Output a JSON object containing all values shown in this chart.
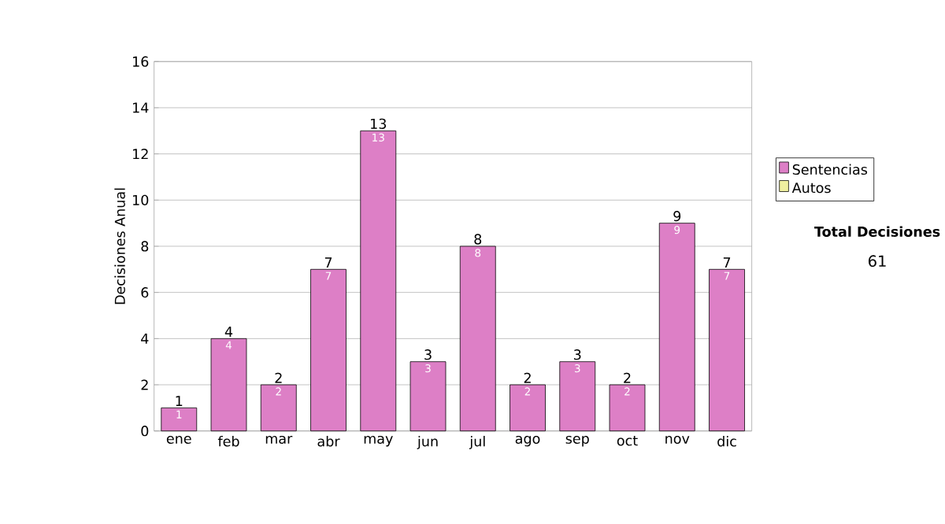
{
  "chart_data": {
    "type": "bar",
    "stacked": true,
    "ylabel": "Decisiones Anual",
    "categories": [
      "ene",
      "feb",
      "mar",
      "abr",
      "may",
      "jun",
      "jul",
      "ago",
      "sep",
      "oct",
      "nov",
      "dic"
    ],
    "series": [
      {
        "name": "Sentencias",
        "color": "#dd7fc6",
        "values": [
          1,
          4,
          2,
          7,
          13,
          3,
          8,
          2,
          3,
          2,
          9,
          7
        ],
        "value_labels": [
          "1",
          "4",
          "2",
          "7",
          "13",
          "3",
          "8",
          "2",
          "3",
          "2",
          "9",
          "7"
        ]
      },
      {
        "name": "Autos",
        "color": "#f0f0a0",
        "values": [
          0,
          0,
          0,
          0,
          0,
          0,
          0,
          0,
          0,
          0,
          0,
          0
        ]
      }
    ],
    "totals": [
      "1",
      "4",
      "2",
      "7",
      "13",
      "3",
      "8",
      "2",
      "3",
      "2",
      "9",
      "7"
    ],
    "ylim": [
      0,
      16
    ],
    "yticks": [
      0,
      2,
      4,
      6,
      8,
      10,
      12,
      14,
      16
    ],
    "grid": "y",
    "legend": "right",
    "annotations": [
      "Total Decisiones",
      "61"
    ]
  }
}
